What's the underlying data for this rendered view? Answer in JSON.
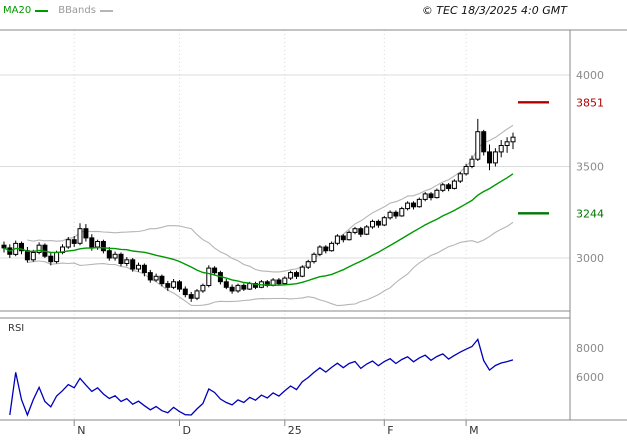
{
  "header": {
    "ma20_label": "MA20",
    "bbands_label": "BBands",
    "copyright": "© TEC 18/3/2025 4:0 GMT"
  },
  "colors": {
    "up_candle": "#ffffff",
    "down_candle": "#000000",
    "candle_outline": "#000000",
    "ma20": "#009900",
    "bbands": "#b5b5b5",
    "rsi": "#0000bb",
    "resistance": "#b00000",
    "support": "#007700",
    "grid": "#dcdcdc",
    "vgrid": "#d8d8d8",
    "frame": "#888888",
    "axis_text": "#8a8a8a",
    "month_text": "#333333",
    "rsi_label_text": "#333333"
  },
  "chart_data": {
    "type": "candlestick",
    "title": "",
    "rsi_panel_label": "RSI",
    "x_axis": {
      "tick_labels": [
        "N",
        "D",
        "25",
        "F",
        "M"
      ],
      "tick_candle_indices": [
        12,
        30,
        48,
        65,
        79
      ]
    },
    "y_axis": {
      "gridline_values": [
        4000,
        3500,
        3000
      ],
      "labels": [
        "4000",
        "3500",
        "3000"
      ],
      "visible_range_estimate": [
        2716,
        4246
      ]
    },
    "levels": [
      {
        "value": 3851,
        "label": "3851",
        "role": "resistance"
      },
      {
        "value": 3244,
        "label": "3244",
        "role": "support"
      }
    ],
    "candles_ohlc": [
      [
        3070,
        3090,
        3030,
        3055
      ],
      [
        3055,
        3075,
        3000,
        3020
      ],
      [
        3020,
        3095,
        3010,
        3080
      ],
      [
        3080,
        3090,
        3020,
        3040
      ],
      [
        3040,
        3060,
        2975,
        2990
      ],
      [
        2990,
        3045,
        2980,
        3030
      ],
      [
        3030,
        3085,
        3020,
        3070
      ],
      [
        3070,
        3080,
        3000,
        3010
      ],
      [
        3010,
        3030,
        2960,
        2980
      ],
      [
        2980,
        3040,
        2970,
        3030
      ],
      [
        3030,
        3075,
        3020,
        3060
      ],
      [
        3060,
        3115,
        3050,
        3100
      ],
      [
        3100,
        3120,
        3060,
        3080
      ],
      [
        3080,
        3190,
        3070,
        3160
      ],
      [
        3160,
        3185,
        3090,
        3110
      ],
      [
        3110,
        3130,
        3040,
        3060
      ],
      [
        3060,
        3100,
        3045,
        3090
      ],
      [
        3090,
        3100,
        3025,
        3040
      ],
      [
        3040,
        3060,
        2985,
        3000
      ],
      [
        3000,
        3035,
        2985,
        3020
      ],
      [
        3020,
        3030,
        2955,
        2970
      ],
      [
        2970,
        3005,
        2955,
        2990
      ],
      [
        2990,
        3000,
        2925,
        2940
      ],
      [
        2940,
        2975,
        2925,
        2960
      ],
      [
        2960,
        2970,
        2900,
        2920
      ],
      [
        2920,
        2935,
        2865,
        2880
      ],
      [
        2880,
        2915,
        2870,
        2900
      ],
      [
        2900,
        2910,
        2845,
        2860
      ],
      [
        2860,
        2875,
        2820,
        2840
      ],
      [
        2840,
        2885,
        2830,
        2870
      ],
      [
        2870,
        2880,
        2815,
        2830
      ],
      [
        2830,
        2845,
        2785,
        2800
      ],
      [
        2800,
        2815,
        2760,
        2780
      ],
      [
        2780,
        2830,
        2770,
        2820
      ],
      [
        2820,
        2860,
        2810,
        2850
      ],
      [
        2850,
        2960,
        2840,
        2945
      ],
      [
        2945,
        2955,
        2905,
        2920
      ],
      [
        2920,
        2930,
        2855,
        2870
      ],
      [
        2870,
        2885,
        2830,
        2840
      ],
      [
        2840,
        2855,
        2805,
        2820
      ],
      [
        2820,
        2860,
        2810,
        2850
      ],
      [
        2850,
        2860,
        2820,
        2830
      ],
      [
        2830,
        2870,
        2825,
        2860
      ],
      [
        2860,
        2870,
        2830,
        2840
      ],
      [
        2840,
        2880,
        2835,
        2870
      ],
      [
        2870,
        2880,
        2840,
        2850
      ],
      [
        2850,
        2890,
        2845,
        2880
      ],
      [
        2880,
        2890,
        2850,
        2860
      ],
      [
        2860,
        2900,
        2855,
        2890
      ],
      [
        2890,
        2930,
        2880,
        2920
      ],
      [
        2920,
        2930,
        2885,
        2900
      ],
      [
        2900,
        2960,
        2895,
        2950
      ],
      [
        2950,
        2990,
        2940,
        2980
      ],
      [
        2980,
        3030,
        2970,
        3020
      ],
      [
        3020,
        3070,
        3010,
        3060
      ],
      [
        3060,
        3070,
        3025,
        3040
      ],
      [
        3040,
        3090,
        3035,
        3080
      ],
      [
        3080,
        3130,
        3070,
        3120
      ],
      [
        3120,
        3130,
        3085,
        3100
      ],
      [
        3100,
        3150,
        3095,
        3140
      ],
      [
        3140,
        3170,
        3130,
        3160
      ],
      [
        3160,
        3170,
        3115,
        3130
      ],
      [
        3130,
        3180,
        3125,
        3170
      ],
      [
        3170,
        3210,
        3160,
        3200
      ],
      [
        3200,
        3210,
        3165,
        3180
      ],
      [
        3180,
        3230,
        3175,
        3220
      ],
      [
        3220,
        3260,
        3210,
        3250
      ],
      [
        3250,
        3260,
        3215,
        3230
      ],
      [
        3230,
        3280,
        3225,
        3270
      ],
      [
        3270,
        3310,
        3260,
        3300
      ],
      [
        3300,
        3310,
        3265,
        3280
      ],
      [
        3280,
        3330,
        3275,
        3320
      ],
      [
        3320,
        3360,
        3310,
        3350
      ],
      [
        3350,
        3360,
        3315,
        3330
      ],
      [
        3330,
        3380,
        3325,
        3370
      ],
      [
        3370,
        3410,
        3360,
        3400
      ],
      [
        3400,
        3410,
        3365,
        3380
      ],
      [
        3380,
        3430,
        3375,
        3420
      ],
      [
        3420,
        3470,
        3410,
        3460
      ],
      [
        3460,
        3515,
        3450,
        3500
      ],
      [
        3500,
        3560,
        3490,
        3540
      ],
      [
        3540,
        3760,
        3530,
        3690
      ],
      [
        3690,
        3700,
        3560,
        3580
      ],
      [
        3580,
        3620,
        3480,
        3520
      ],
      [
        3520,
        3600,
        3500,
        3580
      ],
      [
        3580,
        3645,
        3550,
        3615
      ],
      [
        3615,
        3660,
        3575,
        3635
      ],
      [
        3635,
        3685,
        3595,
        3660
      ]
    ],
    "indicators": {
      "ma20": {
        "period": 20
      },
      "bbands": {
        "period": 20,
        "stddev": 2
      },
      "rsi": {
        "period": 14,
        "axis_labels": [
          {
            "value": 80,
            "text": "8000"
          },
          {
            "value": 60,
            "text": "6000"
          }
        ]
      }
    }
  }
}
